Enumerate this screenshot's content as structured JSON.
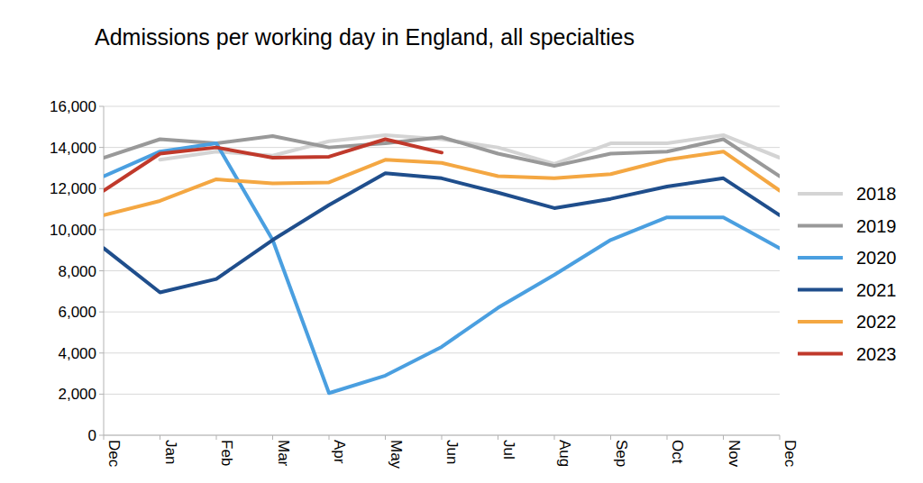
{
  "chart_data": {
    "type": "line",
    "title": "Admissions per working day in England, all specialties",
    "categories": [
      "Dec",
      "Jan",
      "Feb",
      "Mar",
      "Apr",
      "May",
      "Jun",
      "Jul",
      "Aug",
      "Sep",
      "Oct",
      "Nov",
      "Dec"
    ],
    "series": [
      {
        "name": "2018",
        "color": "#d4d4d4",
        "values": [
          null,
          13400,
          13800,
          13600,
          14300,
          14600,
          14400,
          14000,
          13200,
          14200,
          14200,
          14600,
          13500
        ]
      },
      {
        "name": "2019",
        "color": "#999999",
        "values": [
          13500,
          14400,
          14200,
          14550,
          14000,
          14200,
          14500,
          13700,
          13100,
          13700,
          13800,
          14400,
          12600
        ]
      },
      {
        "name": "2020",
        "color": "#4a9fe0",
        "values": [
          12600,
          13800,
          14200,
          9500,
          2050,
          2900,
          4300,
          6200,
          7800,
          9500,
          10600,
          10600,
          9100
        ]
      },
      {
        "name": "2021",
        "color": "#1f4e8c",
        "values": [
          9100,
          6950,
          7600,
          9500,
          11200,
          12750,
          12500,
          11800,
          11050,
          11500,
          12100,
          12500,
          10700
        ]
      },
      {
        "name": "2022",
        "color": "#f4a742",
        "values": [
          10700,
          11400,
          12450,
          12250,
          12300,
          13400,
          13250,
          12600,
          12500,
          12700,
          13400,
          13800,
          11900
        ]
      },
      {
        "name": "2023",
        "color": "#c0392b",
        "values": [
          11900,
          13700,
          14000,
          13500,
          13550,
          14400,
          13750,
          null,
          null,
          null,
          null,
          null,
          null
        ]
      }
    ],
    "ylim": [
      0,
      16000
    ],
    "yticks": [
      0,
      {
        "value": 2000,
        "label": "2,000"
      },
      {
        "value": 4000,
        "label": "4,000"
      },
      {
        "value": 6000,
        "label": "6,000"
      },
      {
        "value": 8000,
        "label": "8,000"
      },
      {
        "value": 10000,
        "label": "10,000"
      },
      {
        "value": 12000,
        "label": "12,000"
      },
      {
        "value": 14000,
        "label": "14,000"
      },
      {
        "value": 16000,
        "label": "16,000"
      }
    ],
    "grid": true,
    "legend": "right"
  }
}
